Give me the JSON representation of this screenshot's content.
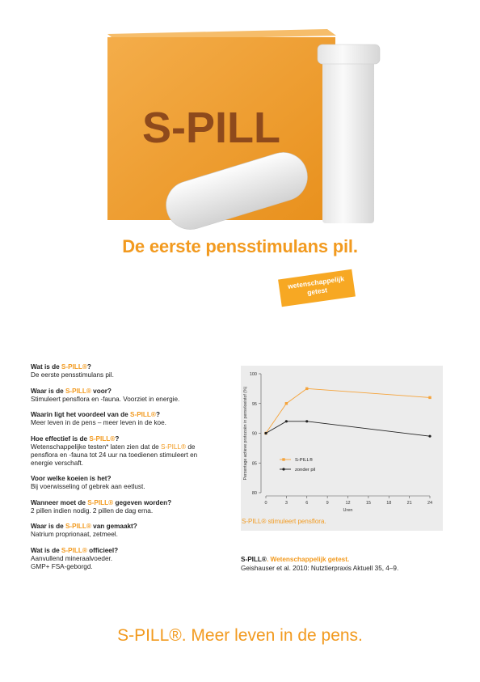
{
  "product_label": "S-PILL",
  "headline": "De eerste pensstimulans pil.",
  "badge": [
    "wetenschappelijk",
    "getest"
  ],
  "faq": [
    {
      "question": [
        "Wat is de ",
        "S-PILL®",
        "?"
      ],
      "answer": [
        [
          "De eerste pensstimulans pil."
        ]
      ]
    },
    {
      "question": [
        "Waar is de ",
        "S-PILL®",
        " voor?"
      ],
      "answer": [
        [
          "Stimuleert pensflora en -fauna. Voorziet in energie."
        ]
      ]
    },
    {
      "question": [
        "Waarin ligt het voordeel van de ",
        "S-PILL®",
        "?"
      ],
      "answer": [
        [
          "Meer leven in de pens – meer leven in de koe."
        ]
      ]
    },
    {
      "question": [
        "Hoe effectief is de ",
        "S-PILL®",
        "?"
      ],
      "answer": [
        [
          "Wetenschappelijke testen* laten zien dat de ",
          "S-PILL®",
          " de"
        ],
        [
          "pensflora en -fauna tot 24 uur na toedienen stimuleert en"
        ],
        [
          "energie verschaft."
        ]
      ]
    },
    {
      "question": [
        "Voor welke koeien is het?"
      ],
      "answer": [
        [
          "Bij voerwisseling of gebrek aan eetlust."
        ]
      ]
    },
    {
      "question": [
        "Wanneer moet de ",
        "S-PILL®",
        " gegeven worden?"
      ],
      "answer": [
        [
          "2 pillen indien nodig. 2 pillen de dag erna."
        ]
      ]
    },
    {
      "question": [
        "Waar is de ",
        "S-PILL®",
        " van gemaakt?"
      ],
      "answer": [
        [
          "Natrium proprionaat, zetmeel."
        ]
      ]
    },
    {
      "question": [
        "Wat is de ",
        "S-PILL®",
        " officieel?"
      ],
      "answer": [
        [
          "Aanvullend mineraalvoeder."
        ],
        [
          "GMP+ FSA-geborgd."
        ]
      ]
    }
  ],
  "chart_data": {
    "type": "line",
    "x": [
      0,
      3,
      6,
      24
    ],
    "series": [
      {
        "name": "S-PILL®",
        "color": "#f5a33a",
        "values": [
          90,
          95,
          97.5,
          96
        ]
      },
      {
        "name": "zonder pil",
        "color": "#222222",
        "values": [
          90,
          92,
          92,
          89.5
        ]
      }
    ],
    "xlim": [
      0,
      24
    ],
    "xticks": [
      0,
      3,
      6,
      9,
      12,
      15,
      18,
      21,
      24
    ],
    "ylim": [
      80,
      100
    ],
    "yticks": [
      80,
      85,
      90,
      95,
      100
    ],
    "xlabel": "Uren",
    "ylabel": "Percentage actieve protozoën in pensvloeistof (%)"
  },
  "chart_caption": [
    "S-PILL®",
    " stimuleert pensflora."
  ],
  "source": {
    "title": [
      "S-PILL®",
      ". Wetenschappelijk getest."
    ],
    "citation": "Geishauser et al. 2010: Nutztierpraxis Aktuell 35, 4–9."
  },
  "footer": [
    "S-PILL®",
    ". Meer leven in de pens."
  ]
}
